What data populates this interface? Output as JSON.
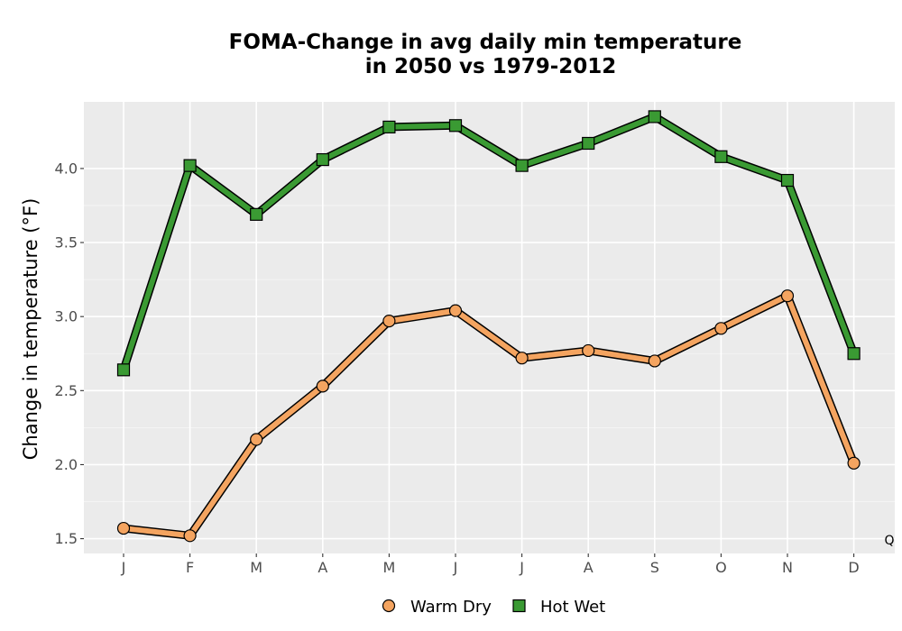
{
  "chart_data": {
    "type": "line",
    "title_line1": "FOMA-Change in avg daily min temperature",
    "title_line2": "in 2050 vs 1979-2012",
    "xlabel": "",
    "ylabel": "Change in temperature (°F)",
    "categories": [
      "J",
      "F",
      "M",
      "A",
      "M",
      "J",
      "J",
      "A",
      "S",
      "O",
      "N",
      "D"
    ],
    "ylim": [
      1.4,
      4.45
    ],
    "yticks": [
      1.5,
      2.0,
      2.5,
      3.0,
      3.5,
      4.0
    ],
    "ytick_labels": [
      "1.5",
      "2.0",
      "2.5",
      "3.0",
      "3.5",
      "4.0"
    ],
    "grid": true,
    "legend_position": "bottom",
    "corner_note": "Q",
    "series": [
      {
        "name": "Warm Dry",
        "marker": "circle",
        "color": "#f4a460",
        "values": [
          1.57,
          1.52,
          2.17,
          2.53,
          2.97,
          3.04,
          2.72,
          2.77,
          2.7,
          2.92,
          3.14,
          2.01
        ]
      },
      {
        "name": "Hot Wet",
        "marker": "square",
        "color": "#3a9a33",
        "values": [
          2.64,
          4.02,
          3.69,
          4.06,
          4.28,
          4.29,
          4.02,
          4.17,
          4.35,
          4.08,
          3.92,
          2.75
        ]
      }
    ]
  }
}
